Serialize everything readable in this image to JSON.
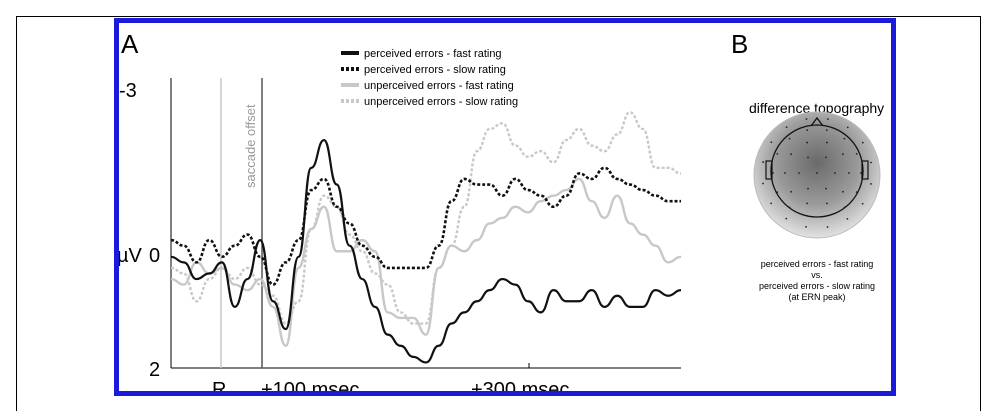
{
  "panel_a": {
    "label": "A",
    "vline_label": "saccade offset",
    "y_label": "µV",
    "y_ticks": [
      "-3",
      "0",
      "2"
    ],
    "x_ticks": [
      "R",
      "+100 msec",
      "+300 msec"
    ]
  },
  "panel_b": {
    "label": "B",
    "title": "difference topography",
    "caption": {
      "line1": "perceived errors - fast rating",
      "line2": "vs.",
      "line3": "perceived errors - slow rating",
      "line4": "(at ERN peak)"
    }
  },
  "chart_data": {
    "type": "line",
    "ylabel": "µV",
    "ylim": [
      2,
      -3
    ],
    "y_ticks": [
      -3,
      0,
      2
    ],
    "x_tick_labels": [
      "R",
      "+100 msec",
      "+300 msec"
    ],
    "annotations": [
      "saccade offset"
    ],
    "legend_position": "top-center",
    "colors": {
      "fast_perceived": "#111111",
      "slow_perceived": "#111111",
      "fast_unperceived": "#c8c8c8",
      "slow_unperceived": "#c8c8c8"
    },
    "x": [
      0,
      1,
      2,
      3,
      4,
      5,
      6,
      7,
      8,
      9,
      10,
      11,
      12,
      13,
      14,
      15,
      16,
      17,
      18,
      19,
      20,
      21,
      22,
      23,
      24,
      25,
      26,
      27,
      28,
      29,
      30,
      31,
      32,
      33,
      34,
      35,
      36,
      37,
      38,
      39,
      40
    ],
    "series": [
      {
        "name": "perceived errors - fast rating",
        "style": "solid-black",
        "values": [
          0,
          0.1,
          0.4,
          0.3,
          0.1,
          0.9,
          0.4,
          -0.3,
          0.8,
          1.3,
          0,
          -1.6,
          -2.1,
          -1.3,
          -0.2,
          0.4,
          0.9,
          1.4,
          1.6,
          1.8,
          1.9,
          1.6,
          1.2,
          1.0,
          0.8,
          0.6,
          0.4,
          0.5,
          0.8,
          1.0,
          0.6,
          0.8,
          0.8,
          0.6,
          0.9,
          0.7,
          0.9,
          0.9,
          0.6,
          0.7,
          0.6
        ]
      },
      {
        "name": "perceived errors - slow rating",
        "style": "dotted-black",
        "values": [
          -0.3,
          -0.2,
          0.1,
          -0.3,
          0,
          -0.2,
          -0.4,
          0,
          0.5,
          0.1,
          -0.3,
          -1.2,
          -1.4,
          -0.9,
          -0.6,
          -0.2,
          0,
          0.2,
          0.2,
          0.2,
          0.2,
          -0.2,
          -1.0,
          -1.4,
          -1.3,
          -1.3,
          -1.1,
          -1.4,
          -1.2,
          -1.1,
          -0.9,
          -1.1,
          -1.5,
          -1.4,
          -1.6,
          -1.4,
          -1.3,
          -1.2,
          -1.1,
          -1.0,
          -1.0
        ]
      },
      {
        "name": "unperceived errors - fast rating",
        "style": "solid-gray",
        "values": [
          0.4,
          0.5,
          0.1,
          0.3,
          0.2,
          0.5,
          0.6,
          0.4,
          0.9,
          1.6,
          0.2,
          -0.5,
          -0.9,
          -0.1,
          -0.1,
          -0.3,
          -0.1,
          1.0,
          1.1,
          1.1,
          1.4,
          0.2,
          -0.2,
          -0.1,
          -0.3,
          -0.6,
          -0.7,
          -0.9,
          -0.8,
          -1.0,
          -1.1,
          -1.2,
          -1.4,
          -1.0,
          -0.7,
          -1.1,
          -0.6,
          -0.4,
          -0.2,
          0.1,
          0
        ]
      },
      {
        "name": "unperceived errors - slow rating",
        "style": "dotted-gray",
        "values": [
          0.2,
          0.3,
          0.8,
          0.4,
          0.2,
          0.4,
          0.2,
          0.5,
          0.7,
          1.2,
          0.8,
          -0.5,
          -1.1,
          -0.9,
          -0.4,
          -0.1,
          0.3,
          0.5,
          1.0,
          1.2,
          1.2,
          0.2,
          -0.2,
          -0.9,
          -1.9,
          -2.3,
          -2.4,
          -2.0,
          -1.8,
          -1.9,
          -1.7,
          -2.1,
          -2.3,
          -2.0,
          -1.9,
          -2.2,
          -2.6,
          -2.3,
          -1.6,
          -1.6,
          -1.5
        ]
      }
    ]
  }
}
